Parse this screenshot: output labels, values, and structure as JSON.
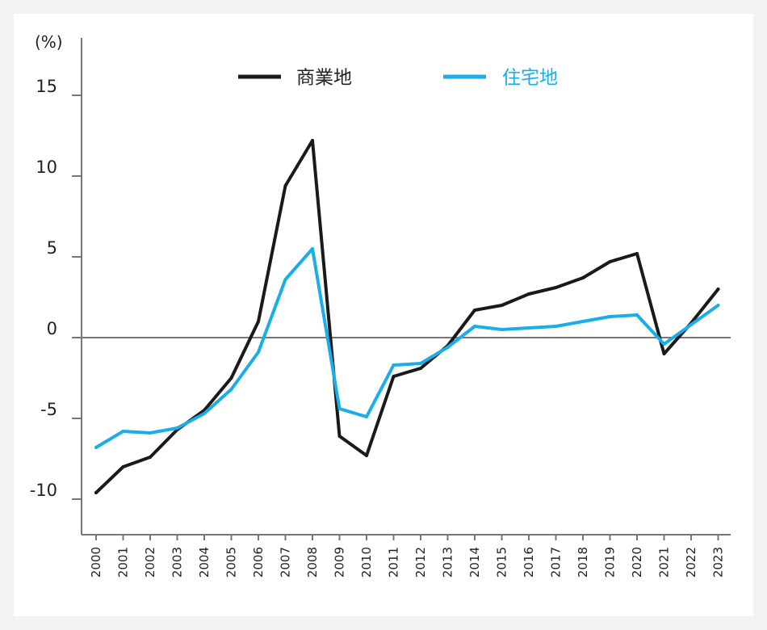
{
  "chart_data": {
    "type": "line",
    "unit_label": "(%)",
    "categories": [
      "2000",
      "2001",
      "2002",
      "2003",
      "2004",
      "2005",
      "2006",
      "2007",
      "2008",
      "2009",
      "2010",
      "2011",
      "2012",
      "2013",
      "2014",
      "2015",
      "2016",
      "2017",
      "2018",
      "2019",
      "2020",
      "2021",
      "2022",
      "2023"
    ],
    "ylim": [
      -12,
      17
    ],
    "yticks": [
      15,
      10,
      5,
      0,
      -5,
      -10
    ],
    "ytick_labels": [
      "15",
      "10",
      "5",
      "0",
      "-5",
      "-10"
    ],
    "grid": false,
    "zero_line": true,
    "legend_position": "top",
    "series": [
      {
        "name": "商業地",
        "color": "#1a1a1a",
        "values": [
          -9.6,
          -8.0,
          -7.4,
          -5.7,
          -4.5,
          -2.5,
          1.0,
          9.4,
          12.2,
          -6.1,
          -7.3,
          -2.4,
          -1.9,
          -0.5,
          1.7,
          2.0,
          2.7,
          3.1,
          3.7,
          4.7,
          5.2,
          -1.0,
          0.9,
          3.0
        ]
      },
      {
        "name": "住宅地",
        "color": "#19aee8",
        "values": [
          -6.8,
          -5.8,
          -5.9,
          -5.6,
          -4.7,
          -3.2,
          -0.9,
          3.6,
          5.5,
          -4.4,
          -4.9,
          -1.7,
          -1.6,
          -0.6,
          0.7,
          0.5,
          0.6,
          0.7,
          1.0,
          1.3,
          1.4,
          -0.4,
          0.8,
          2.0
        ]
      }
    ]
  }
}
